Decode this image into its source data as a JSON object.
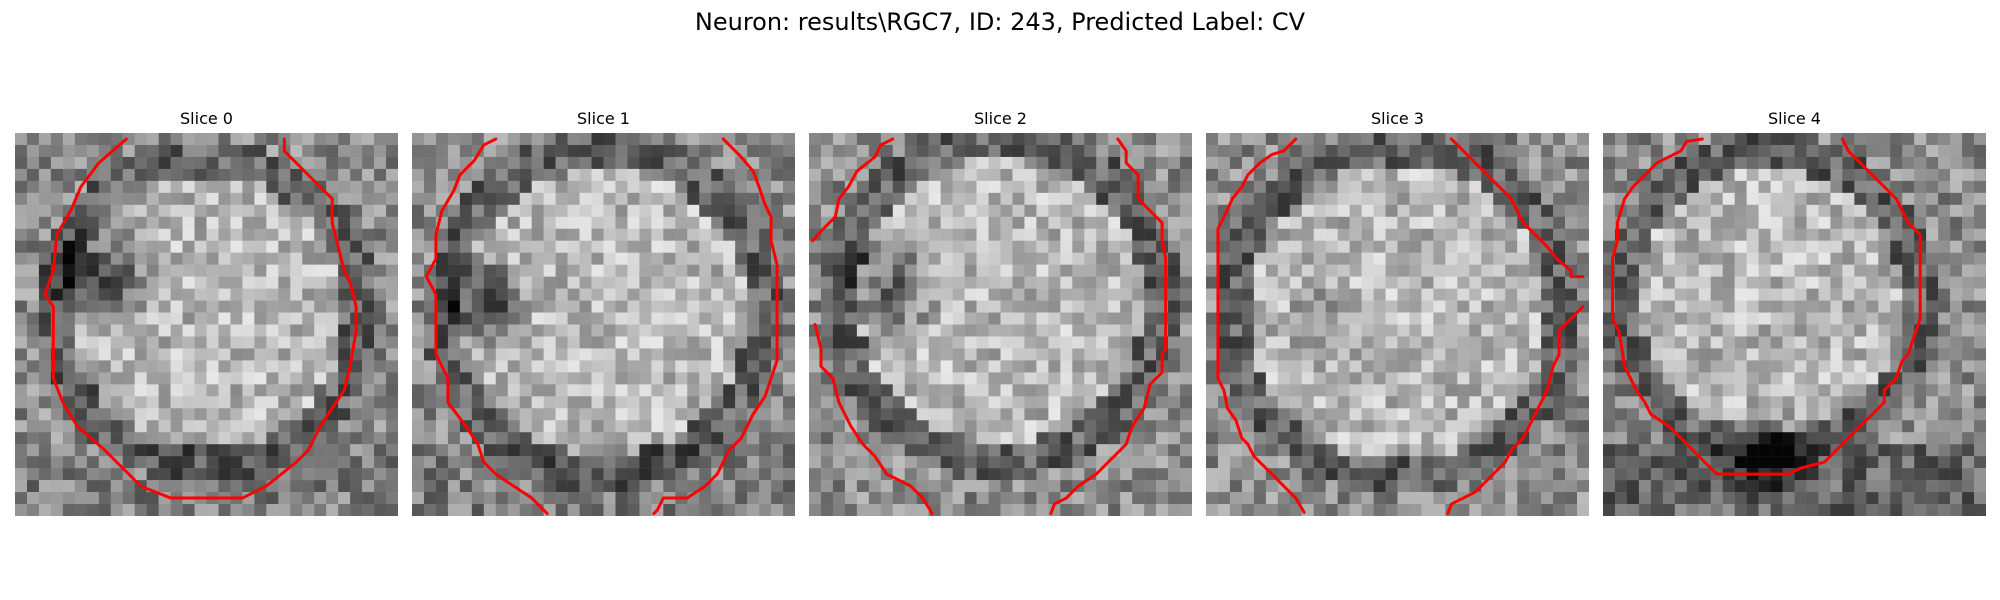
{
  "figure": {
    "title": "Neuron: results\\RGC7, ID: 243, Predicted Label: CV",
    "outline_color": "#ff0000"
  },
  "panels": [
    {
      "title": "Slice 0"
    },
    {
      "title": "Slice 1"
    },
    {
      "title": "Slice 2"
    },
    {
      "title": "Slice 3"
    },
    {
      "title": "Slice 4"
    }
  ]
}
